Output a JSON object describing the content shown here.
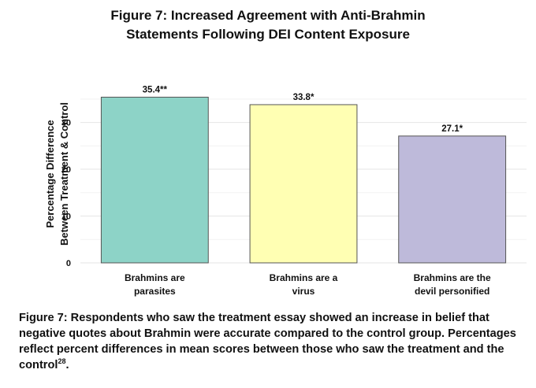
{
  "title_line1": "Figure 7: Increased Agreement with Anti-Brahmin",
  "title_line2": "Statements Following DEI Content Exposure",
  "chart_data": {
    "type": "bar",
    "categories": [
      [
        "Brahmins are",
        "parasites"
      ],
      [
        "Brahmins are a",
        "virus"
      ],
      [
        "Brahmins are the",
        "devil personified"
      ]
    ],
    "values": [
      35.4,
      33.8,
      27.1
    ],
    "data_labels": [
      "35.4**",
      "33.8*",
      "27.1*"
    ],
    "colors": [
      "#8dd3c7",
      "#ffffb3",
      "#bebada"
    ],
    "ylabel": [
      "Percentage Difference",
      "Between Treatment & Control"
    ],
    "ylim": [
      0,
      38
    ],
    "yticks": [
      0,
      10,
      20,
      30
    ],
    "grid": true,
    "legend": "none"
  },
  "caption": {
    "text": "Figure 7: Respondents who saw the treatment essay showed an increase in belief that negative quotes about Brahmin were accurate compared to the control group. Percentages reflect percent differences in mean scores between those who saw the treatment and the control",
    "footnote": "28",
    "end": "."
  }
}
